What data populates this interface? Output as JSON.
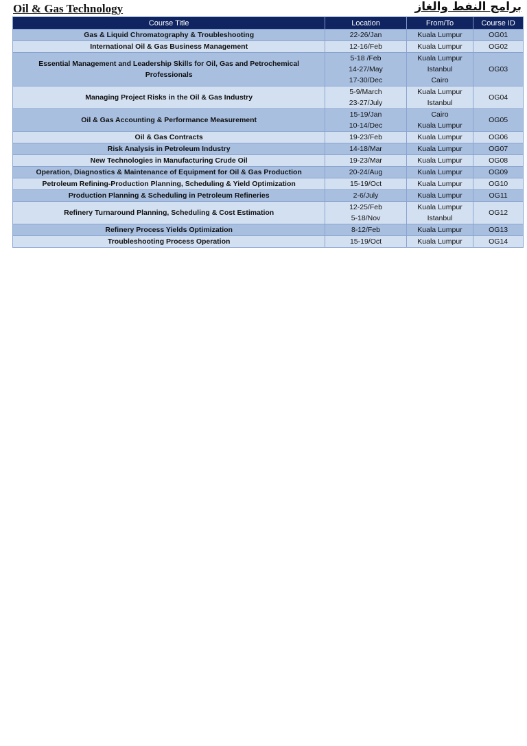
{
  "header": {
    "title": "Oil & Gas Technology",
    "arabic_title": "برامج النفط والغاز"
  },
  "columns": [
    "Course Title",
    "Location",
    "From/To",
    "Course ID"
  ],
  "rows": [
    {
      "title": "Gas & Liquid Chromatography & Troubleshooting",
      "dates": [
        "22-26/Jan"
      ],
      "places": [
        "Kuala Lumpur"
      ],
      "id": "OG01"
    },
    {
      "title": "International Oil & Gas Business Management",
      "dates": [
        "12-16/Feb"
      ],
      "places": [
        "Kuala Lumpur"
      ],
      "id": "OG02"
    },
    {
      "title": "Essential Management and Leadership Skills for Oil, Gas and Petrochemical Professionals",
      "dates": [
        "5-18 /Feb",
        "14-27/May",
        "17-30/Dec"
      ],
      "places": [
        "Kuala Lumpur",
        "Istanbul",
        "Cairo"
      ],
      "id": "OG03"
    },
    {
      "title": "Managing Project Risks in the Oil & Gas Industry",
      "dates": [
        "5-9/March",
        "23-27/July"
      ],
      "places": [
        "Kuala Lumpur",
        "Istanbul"
      ],
      "id": "OG04"
    },
    {
      "title": "Oil & Gas Accounting & Performance Measurement",
      "dates": [
        "15-19/Jan",
        "10-14/Dec"
      ],
      "places": [
        "Cairo",
        "Kuala Lumpur"
      ],
      "id": "OG05"
    },
    {
      "title": "Oil & Gas Contracts",
      "dates": [
        "19-23/Feb"
      ],
      "places": [
        "Kuala Lumpur"
      ],
      "id": "OG06"
    },
    {
      "title": "Risk Analysis in Petroleum Industry",
      "dates": [
        "14-18/Mar"
      ],
      "places": [
        "Kuala Lumpur"
      ],
      "id": "OG07"
    },
    {
      "title": "New Technologies in Manufacturing Crude Oil",
      "dates": [
        "19-23/Mar"
      ],
      "places": [
        "Kuala Lumpur"
      ],
      "id": "OG08"
    },
    {
      "title": "Operation, Diagnostics & Maintenance of Equipment for Oil & Gas Production",
      "dates": [
        "20-24/Aug"
      ],
      "places": [
        "Kuala Lumpur"
      ],
      "id": "OG09"
    },
    {
      "title": "Petroleum Refining-Production Planning, Scheduling & Yield Optimization",
      "dates": [
        "15-19/Oct"
      ],
      "places": [
        "Kuala Lumpur"
      ],
      "id": "OG10"
    },
    {
      "title": "Production Planning & Scheduling in Petroleum Refineries",
      "dates": [
        "2-6/July"
      ],
      "places": [
        "Kuala Lumpur"
      ],
      "id": "OG11"
    },
    {
      "title": "Refinery Turnaround Planning, Scheduling & Cost Estimation",
      "dates": [
        "12-25/Feb",
        "5-18/Nov"
      ],
      "places": [
        "Kuala Lumpur",
        "Istanbul"
      ],
      "id": "OG12"
    },
    {
      "title": "Refinery Process Yields Optimization",
      "dates": [
        "8-12/Feb"
      ],
      "places": [
        "Kuala Lumpur"
      ],
      "id": "OG13"
    },
    {
      "title": "Troubleshooting Process Operation",
      "dates": [
        "15-19/Oct"
      ],
      "places": [
        "Kuala Lumpur"
      ],
      "id": "OG14"
    }
  ]
}
